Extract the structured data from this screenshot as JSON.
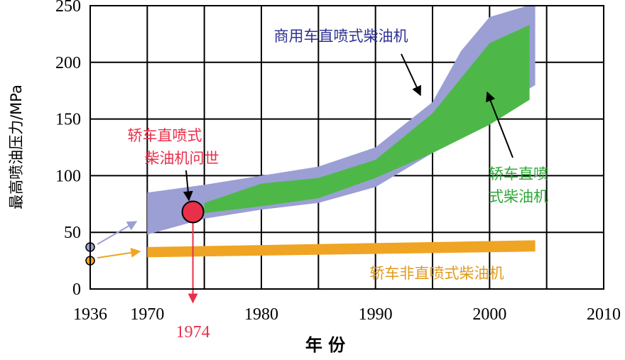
{
  "chart_data": {
    "type": "band",
    "y_label": "最高喷油压力/MPa",
    "x_label": "年 份",
    "xlim": [
      1965,
      2010
    ],
    "x_break": 1936,
    "xticks": [
      1970,
      1980,
      1990,
      2000,
      2010
    ],
    "xgrid": [
      1970,
      1975,
      1980,
      1985,
      1990,
      1995,
      2000,
      2005
    ],
    "ylim": [
      0,
      250
    ],
    "yticks": [
      0,
      50,
      100,
      150,
      200,
      250
    ],
    "grid": true,
    "series": [
      {
        "label_lines": [
          "商用车直喷式柴油机"
        ],
        "color": "#9b9fd4",
        "text_color": "#2e3192",
        "x": [
          1970,
          1975,
          1980,
          1985,
          1990,
          1995,
          1997.5,
          2000,
          2004
        ],
        "upper": [
          85,
          92,
          100,
          108,
          125,
          165,
          210,
          240,
          252
        ],
        "lower": [
          48,
          62,
          70,
          76,
          90,
          120,
          142,
          155,
          180
        ]
      },
      {
        "label_lines": [
          "轿车直喷",
          "式柴油机"
        ],
        "color": "#4db848",
        "text_color": "#2ea836",
        "x": [
          1975,
          1980,
          1985,
          1990,
          1995,
          2000,
          2003.5
        ],
        "upper": [
          76,
          93,
          98,
          114,
          155,
          217,
          233
        ],
        "lower": [
          67,
          73,
          80,
          98,
          120,
          145,
          167
        ]
      },
      {
        "label_lines": [
          "轿车非直喷式柴油机"
        ],
        "color": "#f0a424",
        "text_color": "#e09a1c",
        "x": [
          1970,
          2004
        ],
        "upper": [
          37,
          43
        ],
        "lower": [
          28,
          33
        ]
      }
    ],
    "origin_points": [
      {
        "x": 1936,
        "value": 37,
        "color": "#9b9fd4"
      },
      {
        "x": 1936,
        "value": 25,
        "color": "#f0a424"
      }
    ],
    "event": {
      "x": 1974,
      "value": 68,
      "color": "#e8304a",
      "label_lines": [
        "轿车直喷式",
        "柴油机问世"
      ],
      "x_label": "1974"
    }
  }
}
